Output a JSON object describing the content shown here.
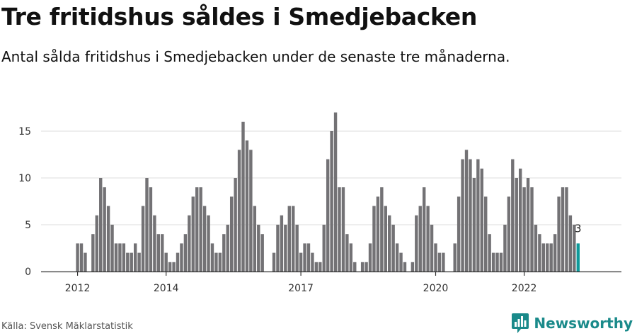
{
  "header": {
    "title": "Tre fritidshus såldes i Smedjebacken",
    "subtitle": "Antal sålda fritidshus i Smedjebacken under de senaste tre månaderna."
  },
  "footer": {
    "source": "Källa: Svensk Mäklarstatistik",
    "brand": "Newsworthy",
    "brand_icon": "bar-chart-logo-icon"
  },
  "colors": {
    "bar": "#737275",
    "highlight": "#0f9a9a",
    "grid": "#dddddd",
    "axis": "#333333",
    "brand": "#1a8a8a"
  },
  "chart_data": {
    "type": "bar",
    "title": "",
    "xlabel": "",
    "ylabel": "",
    "ylim": [
      0,
      17
    ],
    "yticks": [
      0,
      5,
      10,
      15
    ],
    "xticks": [
      {
        "label": "2012",
        "index": 2
      },
      {
        "label": "2014",
        "index": 25
      },
      {
        "label": "2017",
        "index": 60
      },
      {
        "label": "2020",
        "index": 95
      },
      {
        "label": "2022",
        "index": 118
      }
    ],
    "grid": true,
    "values": [
      null,
      null,
      3,
      3,
      2,
      null,
      4,
      6,
      10,
      9,
      7,
      5,
      3,
      3,
      3,
      2,
      2,
      3,
      2,
      7,
      10,
      9,
      6,
      4,
      4,
      2,
      1,
      1,
      2,
      3,
      4,
      6,
      8,
      9,
      9,
      7,
      6,
      3,
      2,
      2,
      4,
      5,
      8,
      10,
      13,
      16,
      14,
      13,
      7,
      5,
      4,
      null,
      null,
      2,
      5,
      6,
      5,
      7,
      7,
      5,
      2,
      3,
      3,
      2,
      1,
      1,
      5,
      12,
      15,
      17,
      9,
      9,
      4,
      3,
      1,
      null,
      1,
      1,
      3,
      7,
      8,
      9,
      7,
      6,
      5,
      3,
      2,
      1,
      null,
      1,
      6,
      7,
      9,
      7,
      5,
      3,
      2,
      2,
      null,
      null,
      3,
      8,
      12,
      13,
      12,
      10,
      12,
      11,
      8,
      4,
      2,
      2,
      2,
      5,
      8,
      12,
      10,
      11,
      9,
      10,
      9,
      5,
      4,
      3,
      3,
      3,
      4,
      8,
      9,
      9,
      6,
      5,
      3
    ],
    "highlight": {
      "index": 132,
      "value": 3,
      "label": "3"
    }
  }
}
